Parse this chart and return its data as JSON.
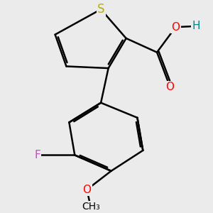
{
  "background_color": "#ebebeb",
  "atom_colors": {
    "S": "#b8b000",
    "O": "#ff0000",
    "F": "#cc44cc",
    "H": "#008888",
    "C": "#000000"
  },
  "bond_color": "#000000",
  "bond_width": 1.8,
  "font_size": 11
}
